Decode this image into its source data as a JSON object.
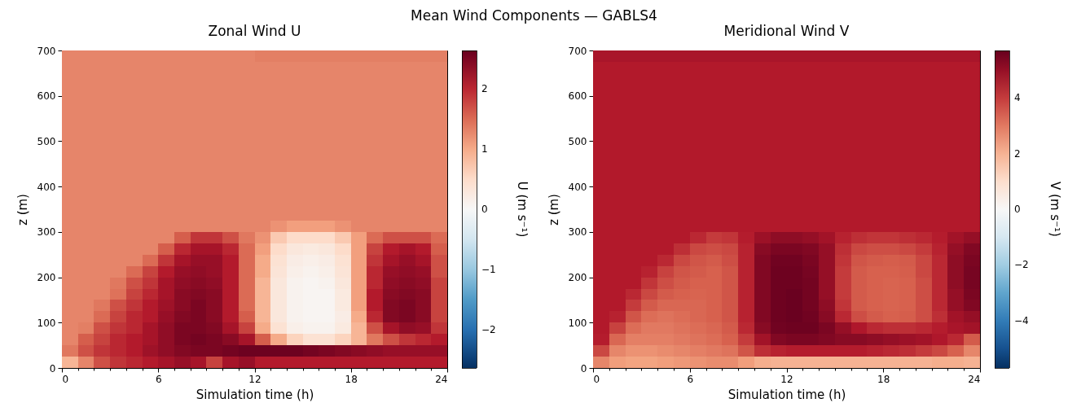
{
  "chart_data": [
    {
      "type": "heatmap",
      "title": "Zonal Wind U",
      "annotations": [
        "Mean Wind Components — GABLS4"
      ],
      "xlabel": "Simulation time (h)",
      "ylabel": "z (m)",
      "clabel": "U (m s⁻¹)",
      "x": [
        0.5,
        1.5,
        2.5,
        3.5,
        4.5,
        5.5,
        6.5,
        7.5,
        8.5,
        9.5,
        10.5,
        11.5,
        12.5,
        13.5,
        14.5,
        15.5,
        16.5,
        17.5,
        18.5,
        19.5,
        20.5,
        21.5,
        22.5,
        23.5
      ],
      "y": [
        687.5,
        662.5,
        637.5,
        612.5,
        587.5,
        562.5,
        537.5,
        512.5,
        487.5,
        462.5,
        437.5,
        412.5,
        387.5,
        362.5,
        337.5,
        312.5,
        287.5,
        262.5,
        237.5,
        212.5,
        187.5,
        162.5,
        137.5,
        112.5,
        87.5,
        62.5,
        37.5,
        12.5
      ],
      "xlim": [
        0,
        24
      ],
      "xticks": [
        0,
        {
          "value": 1,
          "label": null
        },
        {
          "value": 2,
          "label": null
        },
        {
          "value": 3,
          "label": null
        },
        {
          "value": 4,
          "label": null
        },
        {
          "value": 5,
          "label": null
        },
        6,
        {
          "value": 7,
          "label": null
        },
        {
          "value": 8,
          "label": null
        },
        {
          "value": 9,
          "label": null
        },
        {
          "value": 10,
          "label": null
        },
        {
          "value": 11,
          "label": null
        },
        12,
        {
          "value": 13,
          "label": null
        },
        {
          "value": 14,
          "label": null
        },
        {
          "value": 15,
          "label": null
        },
        {
          "value": 16,
          "label": null
        },
        {
          "value": 17,
          "label": null
        },
        18,
        {
          "value": 19,
          "label": null
        },
        {
          "value": 20,
          "label": null
        },
        {
          "value": 21,
          "label": null
        },
        {
          "value": 22,
          "label": null
        },
        {
          "value": 23,
          "label": null
        },
        24
      ],
      "ylim": [
        0,
        700
      ],
      "yticks": [
        0,
        100,
        200,
        300,
        400,
        500,
        600,
        700
      ],
      "clim": [
        -2.64,
        2.64
      ],
      "cticks": [
        {
          "value": -2,
          "label": "−2"
        },
        {
          "value": -1,
          "label": "−1"
        },
        0,
        1,
        2
      ],
      "cells": [
        [
          1.3,
          1.3,
          1.3,
          1.3,
          1.3,
          1.3,
          1.3,
          1.3,
          1.3,
          1.3,
          1.3,
          1.3,
          1.35,
          1.35,
          1.35,
          1.35,
          1.35,
          1.35,
          1.35,
          1.35,
          1.35,
          1.35,
          1.35,
          1.35
        ],
        [
          1.3,
          1.3,
          1.3,
          1.3,
          1.3,
          1.3,
          1.3,
          1.3,
          1.3,
          1.3,
          1.3,
          1.3,
          1.3,
          1.3,
          1.3,
          1.3,
          1.3,
          1.3,
          1.3,
          1.3,
          1.3,
          1.3,
          1.3,
          1.3
        ],
        [
          1.3,
          1.3,
          1.3,
          1.3,
          1.3,
          1.3,
          1.3,
          1.3,
          1.3,
          1.3,
          1.3,
          1.3,
          1.3,
          1.3,
          1.3,
          1.3,
          1.3,
          1.3,
          1.3,
          1.3,
          1.3,
          1.3,
          1.3,
          1.3
        ],
        [
          1.3,
          1.3,
          1.3,
          1.3,
          1.3,
          1.3,
          1.3,
          1.3,
          1.3,
          1.3,
          1.3,
          1.3,
          1.3,
          1.3,
          1.3,
          1.3,
          1.3,
          1.3,
          1.3,
          1.3,
          1.3,
          1.3,
          1.3,
          1.3
        ],
        [
          1.3,
          1.3,
          1.3,
          1.3,
          1.3,
          1.3,
          1.3,
          1.3,
          1.3,
          1.3,
          1.3,
          1.3,
          1.3,
          1.3,
          1.3,
          1.3,
          1.3,
          1.3,
          1.3,
          1.3,
          1.3,
          1.3,
          1.3,
          1.3
        ],
        [
          1.3,
          1.3,
          1.3,
          1.3,
          1.3,
          1.3,
          1.3,
          1.3,
          1.3,
          1.3,
          1.3,
          1.3,
          1.3,
          1.3,
          1.3,
          1.3,
          1.3,
          1.3,
          1.3,
          1.3,
          1.3,
          1.3,
          1.3,
          1.3
        ],
        [
          1.3,
          1.3,
          1.3,
          1.3,
          1.3,
          1.3,
          1.3,
          1.3,
          1.3,
          1.3,
          1.3,
          1.3,
          1.3,
          1.3,
          1.3,
          1.3,
          1.3,
          1.3,
          1.3,
          1.3,
          1.3,
          1.3,
          1.3,
          1.3
        ],
        [
          1.3,
          1.3,
          1.3,
          1.3,
          1.3,
          1.3,
          1.3,
          1.3,
          1.3,
          1.3,
          1.3,
          1.3,
          1.3,
          1.3,
          1.3,
          1.3,
          1.3,
          1.3,
          1.3,
          1.3,
          1.3,
          1.3,
          1.3,
          1.3
        ],
        [
          1.3,
          1.3,
          1.3,
          1.3,
          1.3,
          1.3,
          1.3,
          1.3,
          1.3,
          1.3,
          1.3,
          1.3,
          1.3,
          1.3,
          1.3,
          1.3,
          1.3,
          1.3,
          1.3,
          1.3,
          1.3,
          1.3,
          1.3,
          1.3
        ],
        [
          1.3,
          1.3,
          1.3,
          1.3,
          1.3,
          1.3,
          1.3,
          1.3,
          1.3,
          1.3,
          1.3,
          1.3,
          1.3,
          1.3,
          1.3,
          1.3,
          1.3,
          1.3,
          1.3,
          1.3,
          1.3,
          1.3,
          1.3,
          1.3
        ],
        [
          1.3,
          1.3,
          1.3,
          1.3,
          1.3,
          1.3,
          1.3,
          1.3,
          1.3,
          1.3,
          1.3,
          1.3,
          1.3,
          1.3,
          1.3,
          1.3,
          1.3,
          1.3,
          1.3,
          1.3,
          1.3,
          1.3,
          1.3,
          1.3
        ],
        [
          1.3,
          1.3,
          1.3,
          1.3,
          1.3,
          1.3,
          1.3,
          1.3,
          1.3,
          1.3,
          1.3,
          1.3,
          1.3,
          1.3,
          1.3,
          1.3,
          1.3,
          1.3,
          1.3,
          1.3,
          1.3,
          1.3,
          1.3,
          1.3
        ],
        [
          1.3,
          1.3,
          1.3,
          1.3,
          1.3,
          1.3,
          1.3,
          1.3,
          1.3,
          1.3,
          1.3,
          1.3,
          1.3,
          1.3,
          1.3,
          1.3,
          1.3,
          1.3,
          1.3,
          1.3,
          1.3,
          1.3,
          1.3,
          1.3
        ],
        [
          1.3,
          1.3,
          1.3,
          1.3,
          1.3,
          1.3,
          1.3,
          1.3,
          1.3,
          1.3,
          1.3,
          1.3,
          1.3,
          1.3,
          1.3,
          1.3,
          1.3,
          1.3,
          1.3,
          1.3,
          1.3,
          1.3,
          1.3,
          1.3
        ],
        [
          1.3,
          1.3,
          1.3,
          1.3,
          1.3,
          1.3,
          1.3,
          1.3,
          1.3,
          1.3,
          1.3,
          1.3,
          1.3,
          1.3,
          1.3,
          1.3,
          1.3,
          1.3,
          1.3,
          1.3,
          1.3,
          1.3,
          1.3,
          1.3
        ],
        [
          1.3,
          1.3,
          1.3,
          1.3,
          1.3,
          1.3,
          1.3,
          1.3,
          1.3,
          1.3,
          1.3,
          1.3,
          1.3,
          1.2,
          1.1,
          1.1,
          1.1,
          1.2,
          1.3,
          1.3,
          1.3,
          1.3,
          1.3,
          1.3
        ],
        [
          1.3,
          1.3,
          1.3,
          1.3,
          1.3,
          1.3,
          1.3,
          1.6,
          1.9,
          1.9,
          1.7,
          1.4,
          1.2,
          0.7,
          0.5,
          0.5,
          0.5,
          0.7,
          1.1,
          1.5,
          1.7,
          1.7,
          1.7,
          1.5
        ],
        [
          1.3,
          1.3,
          1.3,
          1.3,
          1.3,
          1.3,
          1.6,
          2.0,
          2.2,
          2.2,
          2.0,
          1.5,
          1.1,
          0.5,
          0.3,
          0.25,
          0.3,
          0.5,
          1.1,
          1.8,
          2.1,
          2.2,
          2.1,
          1.6
        ],
        [
          1.3,
          1.3,
          1.3,
          1.3,
          1.3,
          1.5,
          1.9,
          2.2,
          2.3,
          2.3,
          2.1,
          1.5,
          1.0,
          0.4,
          0.2,
          0.15,
          0.2,
          0.4,
          1.1,
          1.9,
          2.2,
          2.3,
          2.2,
          1.7
        ],
        [
          1.3,
          1.3,
          1.3,
          1.3,
          1.5,
          1.8,
          2.1,
          2.3,
          2.35,
          2.3,
          2.1,
          1.5,
          1.0,
          0.35,
          0.15,
          0.1,
          0.15,
          0.35,
          1.1,
          2.0,
          2.3,
          2.35,
          2.3,
          1.7
        ],
        [
          1.3,
          1.3,
          1.3,
          1.4,
          1.7,
          1.9,
          2.2,
          2.35,
          2.4,
          2.35,
          2.1,
          1.5,
          0.9,
          0.3,
          0.1,
          0.05,
          0.1,
          0.3,
          1.1,
          2.0,
          2.35,
          2.4,
          2.35,
          1.8
        ],
        [
          1.3,
          1.3,
          1.3,
          1.45,
          1.8,
          2.0,
          2.2,
          2.4,
          2.45,
          2.4,
          2.1,
          1.5,
          0.9,
          0.3,
          0.1,
          0.05,
          0.05,
          0.25,
          1.1,
          2.1,
          2.4,
          2.45,
          2.4,
          1.8
        ],
        [
          1.3,
          1.3,
          1.4,
          1.7,
          1.9,
          2.1,
          2.25,
          2.4,
          2.5,
          2.4,
          2.1,
          1.5,
          0.9,
          0.3,
          0.1,
          0.05,
          0.05,
          0.25,
          1.1,
          2.1,
          2.45,
          2.5,
          2.4,
          1.8
        ],
        [
          1.3,
          1.3,
          1.5,
          1.8,
          2.0,
          2.1,
          2.3,
          2.45,
          2.5,
          2.4,
          2.1,
          1.6,
          0.9,
          0.3,
          0.1,
          0.05,
          0.05,
          0.2,
          1.0,
          2.0,
          2.45,
          2.5,
          2.4,
          1.8
        ],
        [
          1.3,
          1.35,
          1.7,
          1.9,
          2.0,
          2.2,
          2.35,
          2.5,
          2.5,
          2.45,
          2.2,
          1.8,
          1.0,
          0.4,
          0.15,
          0.1,
          0.1,
          0.25,
          0.9,
          1.7,
          2.2,
          2.35,
          2.3,
          1.9
        ],
        [
          1.3,
          1.6,
          1.8,
          2.0,
          2.1,
          2.2,
          2.35,
          2.5,
          2.55,
          2.5,
          2.4,
          2.2,
          1.6,
          1.0,
          0.6,
          0.4,
          0.4,
          0.6,
          0.9,
          1.4,
          1.7,
          1.9,
          2.0,
          2.1
        ],
        [
          1.4,
          1.7,
          1.9,
          2.0,
          2.1,
          2.25,
          2.35,
          2.45,
          2.5,
          2.5,
          2.55,
          2.6,
          2.6,
          2.6,
          2.6,
          2.55,
          2.5,
          2.45,
          2.4,
          2.35,
          2.3,
          2.3,
          2.3,
          2.3
        ],
        [
          0.9,
          1.3,
          1.7,
          1.9,
          2.0,
          2.1,
          2.2,
          2.3,
          2.2,
          1.8,
          2.2,
          2.3,
          2.1,
          2.1,
          2.1,
          2.1,
          2.1,
          2.1,
          2.1,
          2.1,
          2.1,
          2.1,
          2.1,
          2.1
        ]
      ]
    },
    {
      "type": "heatmap",
      "title": "Meridional Wind V",
      "xlabel": "Simulation time (h)",
      "ylabel": "z (m)",
      "clabel": "V (m s⁻¹)",
      "x": [
        0.5,
        1.5,
        2.5,
        3.5,
        4.5,
        5.5,
        6.5,
        7.5,
        8.5,
        9.5,
        10.5,
        11.5,
        12.5,
        13.5,
        14.5,
        15.5,
        16.5,
        17.5,
        18.5,
        19.5,
        20.5,
        21.5,
        22.5,
        23.5
      ],
      "y": [
        687.5,
        662.5,
        637.5,
        612.5,
        587.5,
        562.5,
        537.5,
        512.5,
        487.5,
        462.5,
        437.5,
        412.5,
        387.5,
        362.5,
        337.5,
        312.5,
        287.5,
        262.5,
        237.5,
        212.5,
        187.5,
        162.5,
        137.5,
        112.5,
        87.5,
        62.5,
        37.5,
        12.5
      ],
      "xlim": [
        0,
        24
      ],
      "xticks": [
        0,
        {
          "value": 1,
          "label": null
        },
        {
          "value": 2,
          "label": null
        },
        {
          "value": 3,
          "label": null
        },
        {
          "value": 4,
          "label": null
        },
        {
          "value": 5,
          "label": null
        },
        6,
        {
          "value": 7,
          "label": null
        },
        {
          "value": 8,
          "label": null
        },
        {
          "value": 9,
          "label": null
        },
        {
          "value": 10,
          "label": null
        },
        {
          "value": 11,
          "label": null
        },
        12,
        {
          "value": 13,
          "label": null
        },
        {
          "value": 14,
          "label": null
        },
        {
          "value": 15,
          "label": null
        },
        {
          "value": 16,
          "label": null
        },
        {
          "value": 17,
          "label": null
        },
        18,
        {
          "value": 19,
          "label": null
        },
        {
          "value": 20,
          "label": null
        },
        {
          "value": 21,
          "label": null
        },
        {
          "value": 22,
          "label": null
        },
        {
          "value": 23,
          "label": null
        },
        24
      ],
      "ylim": [
        0,
        700
      ],
      "yticks": [
        0,
        100,
        200,
        300,
        400,
        500,
        600,
        700
      ],
      "clim": [
        -5.7,
        5.7
      ],
      "cticks": [
        {
          "value": -4,
          "label": "−4"
        },
        {
          "value": -2,
          "label": "−2"
        },
        0,
        2,
        4
      ],
      "cells": [
        [
          4.7,
          4.7,
          4.7,
          4.7,
          4.7,
          4.7,
          4.7,
          4.7,
          4.7,
          4.7,
          4.7,
          4.7,
          4.7,
          4.7,
          4.7,
          4.7,
          4.7,
          4.7,
          4.7,
          4.7,
          4.7,
          4.7,
          4.7,
          4.7
        ],
        [
          4.55,
          4.55,
          4.55,
          4.55,
          4.55,
          4.55,
          4.55,
          4.55,
          4.55,
          4.55,
          4.55,
          4.55,
          4.55,
          4.55,
          4.55,
          4.55,
          4.55,
          4.55,
          4.55,
          4.55,
          4.55,
          4.55,
          4.55,
          4.55
        ],
        [
          4.55,
          4.55,
          4.55,
          4.55,
          4.55,
          4.55,
          4.55,
          4.55,
          4.55,
          4.55,
          4.55,
          4.55,
          4.55,
          4.55,
          4.55,
          4.55,
          4.55,
          4.55,
          4.55,
          4.55,
          4.55,
          4.55,
          4.55,
          4.55
        ],
        [
          4.55,
          4.55,
          4.55,
          4.55,
          4.55,
          4.55,
          4.55,
          4.55,
          4.55,
          4.55,
          4.55,
          4.55,
          4.55,
          4.55,
          4.55,
          4.55,
          4.55,
          4.55,
          4.55,
          4.55,
          4.55,
          4.55,
          4.55,
          4.55
        ],
        [
          4.55,
          4.55,
          4.55,
          4.55,
          4.55,
          4.55,
          4.55,
          4.55,
          4.55,
          4.55,
          4.55,
          4.55,
          4.55,
          4.55,
          4.55,
          4.55,
          4.55,
          4.55,
          4.55,
          4.55,
          4.55,
          4.55,
          4.55,
          4.55
        ],
        [
          4.55,
          4.55,
          4.55,
          4.55,
          4.55,
          4.55,
          4.55,
          4.55,
          4.55,
          4.55,
          4.55,
          4.55,
          4.55,
          4.55,
          4.55,
          4.55,
          4.55,
          4.55,
          4.55,
          4.55,
          4.55,
          4.55,
          4.55,
          4.55
        ],
        [
          4.55,
          4.55,
          4.55,
          4.55,
          4.55,
          4.55,
          4.55,
          4.55,
          4.55,
          4.55,
          4.55,
          4.55,
          4.55,
          4.55,
          4.55,
          4.55,
          4.55,
          4.55,
          4.55,
          4.55,
          4.55,
          4.55,
          4.55,
          4.55
        ],
        [
          4.55,
          4.55,
          4.55,
          4.55,
          4.55,
          4.55,
          4.55,
          4.55,
          4.55,
          4.55,
          4.55,
          4.55,
          4.55,
          4.55,
          4.55,
          4.55,
          4.55,
          4.55,
          4.55,
          4.55,
          4.55,
          4.55,
          4.55,
          4.55
        ],
        [
          4.55,
          4.55,
          4.55,
          4.55,
          4.55,
          4.55,
          4.55,
          4.55,
          4.55,
          4.55,
          4.55,
          4.55,
          4.55,
          4.55,
          4.55,
          4.55,
          4.55,
          4.55,
          4.55,
          4.55,
          4.55,
          4.55,
          4.55,
          4.55
        ],
        [
          4.55,
          4.55,
          4.55,
          4.55,
          4.55,
          4.55,
          4.55,
          4.55,
          4.55,
          4.55,
          4.55,
          4.55,
          4.55,
          4.55,
          4.55,
          4.55,
          4.55,
          4.55,
          4.55,
          4.55,
          4.55,
          4.55,
          4.55,
          4.55
        ],
        [
          4.55,
          4.55,
          4.55,
          4.55,
          4.55,
          4.55,
          4.55,
          4.55,
          4.55,
          4.55,
          4.55,
          4.55,
          4.55,
          4.55,
          4.55,
          4.55,
          4.55,
          4.55,
          4.55,
          4.55,
          4.55,
          4.55,
          4.55,
          4.55
        ],
        [
          4.55,
          4.55,
          4.55,
          4.55,
          4.55,
          4.55,
          4.55,
          4.55,
          4.55,
          4.55,
          4.55,
          4.55,
          4.55,
          4.55,
          4.55,
          4.55,
          4.55,
          4.55,
          4.55,
          4.55,
          4.55,
          4.55,
          4.55,
          4.55
        ],
        [
          4.55,
          4.55,
          4.55,
          4.55,
          4.55,
          4.55,
          4.55,
          4.55,
          4.55,
          4.55,
          4.55,
          4.55,
          4.55,
          4.55,
          4.55,
          4.55,
          4.55,
          4.55,
          4.55,
          4.55,
          4.55,
          4.55,
          4.55,
          4.55
        ],
        [
          4.55,
          4.55,
          4.55,
          4.55,
          4.55,
          4.55,
          4.55,
          4.55,
          4.55,
          4.55,
          4.55,
          4.55,
          4.55,
          4.55,
          4.55,
          4.55,
          4.55,
          4.55,
          4.55,
          4.55,
          4.55,
          4.55,
          4.55,
          4.55
        ],
        [
          4.55,
          4.55,
          4.55,
          4.55,
          4.55,
          4.55,
          4.55,
          4.55,
          4.55,
          4.55,
          4.55,
          4.55,
          4.55,
          4.55,
          4.55,
          4.55,
          4.55,
          4.55,
          4.55,
          4.55,
          4.55,
          4.55,
          4.55,
          4.55
        ],
        [
          4.55,
          4.55,
          4.55,
          4.55,
          4.55,
          4.55,
          4.55,
          4.55,
          4.55,
          4.55,
          4.55,
          4.55,
          4.55,
          4.55,
          4.55,
          4.55,
          4.55,
          4.55,
          4.55,
          4.55,
          4.55,
          4.55,
          4.55,
          4.55
        ],
        [
          4.55,
          4.55,
          4.55,
          4.55,
          4.55,
          4.55,
          4.3,
          4.0,
          4.1,
          4.5,
          4.9,
          5.1,
          5.1,
          5.0,
          4.8,
          4.4,
          4.2,
          4.1,
          4.1,
          4.2,
          4.3,
          4.5,
          4.8,
          5.0
        ],
        [
          4.55,
          4.55,
          4.55,
          4.55,
          4.55,
          4.2,
          3.8,
          3.7,
          3.8,
          4.4,
          5.2,
          5.4,
          5.4,
          5.3,
          5.0,
          4.2,
          3.8,
          3.7,
          3.7,
          3.8,
          4.0,
          4.4,
          5.0,
          5.3
        ],
        [
          4.55,
          4.55,
          4.55,
          4.55,
          4.3,
          3.8,
          3.6,
          3.5,
          3.7,
          4.4,
          5.3,
          5.55,
          5.55,
          5.4,
          5.0,
          4.1,
          3.6,
          3.5,
          3.45,
          3.5,
          3.8,
          4.3,
          5.1,
          5.4
        ],
        [
          4.55,
          4.55,
          4.55,
          4.4,
          3.9,
          3.6,
          3.5,
          3.4,
          3.6,
          4.4,
          5.3,
          5.6,
          5.6,
          5.45,
          5.0,
          4.0,
          3.5,
          3.4,
          3.4,
          3.45,
          3.8,
          4.3,
          5.1,
          5.45
        ],
        [
          4.55,
          4.55,
          4.55,
          4.1,
          3.7,
          3.5,
          3.4,
          3.4,
          3.6,
          4.4,
          5.3,
          5.6,
          5.6,
          5.5,
          5.0,
          4.0,
          3.5,
          3.4,
          3.35,
          3.4,
          3.7,
          4.3,
          5.1,
          5.45
        ],
        [
          4.55,
          4.55,
          4.3,
          3.8,
          3.5,
          3.4,
          3.35,
          3.4,
          3.6,
          4.4,
          5.3,
          5.6,
          5.65,
          5.5,
          5.0,
          4.0,
          3.5,
          3.4,
          3.35,
          3.4,
          3.7,
          4.3,
          5.0,
          5.4
        ],
        [
          4.55,
          4.55,
          4.0,
          3.5,
          3.3,
          3.3,
          3.3,
          3.4,
          3.6,
          4.4,
          5.3,
          5.6,
          5.65,
          5.5,
          5.1,
          4.1,
          3.5,
          3.4,
          3.35,
          3.4,
          3.7,
          4.3,
          5.0,
          5.3
        ],
        [
          4.55,
          4.4,
          3.6,
          3.2,
          3.1,
          3.2,
          3.3,
          3.4,
          3.6,
          4.4,
          5.3,
          5.6,
          5.65,
          5.55,
          5.2,
          4.3,
          3.7,
          3.5,
          3.4,
          3.45,
          3.7,
          4.2,
          4.8,
          5.0
        ],
        [
          4.55,
          3.9,
          3.2,
          3.0,
          3.0,
          3.1,
          3.2,
          3.3,
          3.5,
          4.3,
          5.2,
          5.55,
          5.6,
          5.6,
          5.4,
          5.0,
          4.6,
          4.3,
          4.2,
          4.2,
          4.3,
          4.5,
          4.7,
          4.8
        ],
        [
          4.5,
          3.3,
          2.9,
          2.9,
          2.9,
          3.0,
          3.1,
          3.2,
          3.4,
          4.0,
          4.8,
          5.3,
          5.4,
          5.4,
          5.3,
          5.2,
          5.2,
          5.1,
          5.0,
          4.9,
          4.8,
          4.6,
          4.3,
          3.5
        ],
        [
          3.8,
          2.8,
          2.6,
          2.6,
          2.7,
          2.8,
          2.9,
          3.0,
          3.1,
          3.6,
          4.2,
          4.4,
          4.5,
          4.5,
          4.5,
          4.5,
          4.5,
          4.4,
          4.3,
          4.2,
          4.0,
          3.8,
          3.4,
          2.8
        ],
        [
          2.8,
          2.4,
          2.3,
          2.3,
          2.4,
          2.5,
          2.6,
          2.7,
          2.7,
          2.4,
          2.1,
          2.0,
          2.0,
          2.0,
          2.0,
          2.0,
          2.0,
          2.0,
          2.0,
          2.0,
          2.0,
          2.1,
          2.1,
          2.0
        ]
      ]
    }
  ]
}
